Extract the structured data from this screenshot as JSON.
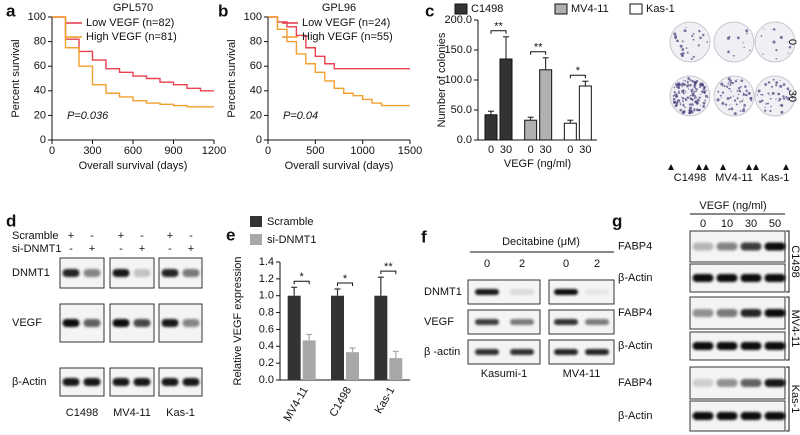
{
  "panel_labels": [
    "a",
    "b",
    "c",
    "d",
    "e",
    "f",
    "g"
  ],
  "chart_data": [
    {
      "type": "line",
      "step": true,
      "title": "GPL570",
      "x_label": "Overall survival (days)",
      "y_label": "Percent survival",
      "annotation": "P=0.036",
      "x": [
        0,
        100,
        200,
        300,
        400,
        500,
        600,
        700,
        800,
        900,
        1000,
        1100,
        1200
      ],
      "xlim": [
        0,
        1200
      ],
      "xticks": [
        0,
        300,
        600,
        900,
        1200
      ],
      "ylim": [
        0,
        100
      ],
      "yticks": [
        0,
        20,
        40,
        60,
        80,
        100
      ],
      "series": [
        {
          "name": "Low VEGF (n=82)",
          "color": "#e8414f",
          "values": [
            100,
            82,
            72,
            65,
            58,
            55,
            52,
            50,
            47,
            45,
            42,
            40,
            40
          ]
        },
        {
          "name": "High VEGF (n=81)",
          "color": "#f0a030",
          "values": [
            100,
            75,
            60,
            45,
            38,
            35,
            32,
            30,
            29,
            28,
            27,
            27,
            27
          ]
        }
      ]
    },
    {
      "type": "line",
      "step": true,
      "title": "GPL96",
      "x_label": "Overall survival (days)",
      "y_label": "Percent survival",
      "annotation": "P=0.04",
      "x": [
        0,
        100,
        200,
        300,
        400,
        500,
        600,
        700,
        800,
        900,
        1000,
        1100,
        1200,
        1300,
        1400,
        1500
      ],
      "xlim": [
        0,
        1500
      ],
      "xticks": [
        0,
        500,
        1000,
        1500
      ],
      "ylim": [
        0,
        100
      ],
      "yticks": [
        0,
        20,
        40,
        60,
        80,
        100
      ],
      "series": [
        {
          "name": "Low VEGF (n=24)",
          "color": "#e8414f",
          "values": [
            100,
            96,
            92,
            85,
            75,
            68,
            62,
            58,
            58,
            58,
            58,
            58,
            58,
            58,
            58,
            58
          ]
        },
        {
          "name": "High VEGF (n=55)",
          "color": "#f0a030",
          "values": [
            100,
            90,
            80,
            70,
            62,
            55,
            48,
            42,
            38,
            36,
            33,
            30,
            28,
            28,
            28,
            28
          ]
        }
      ]
    },
    {
      "type": "bar",
      "x_label": "VEGF (ng/ml)",
      "y_label": "Number of colonies",
      "categories": [
        "0",
        "30"
      ],
      "ylim": [
        0,
        200
      ],
      "yticks": [
        {
          "value": 0,
          "label": "0.0"
        },
        {
          "value": 50,
          "label": "50.0"
        },
        {
          "value": 100,
          "label": "100.0"
        },
        {
          "value": 150,
          "label": "150.0"
        },
        {
          "value": 200,
          "label": "200.0"
        }
      ],
      "series": [
        {
          "name": "C1498",
          "color": "#333333",
          "values": [
            42,
            135
          ],
          "errors": [
            6,
            37
          ]
        },
        {
          "name": "MV4-11",
          "color": "#b0b0b0",
          "values": [
            33,
            117
          ],
          "errors": [
            5,
            20
          ]
        },
        {
          "name": "Kas-1",
          "color": "#ffffff",
          "values": [
            28,
            90
          ],
          "errors": [
            5,
            8
          ]
        }
      ],
      "annotations": [
        "**",
        "**",
        "*"
      ]
    },
    {
      "type": "bar",
      "y_label": "Relative VEGF expression",
      "categories": [
        "MV4-11",
        "C1498",
        "Kas-1"
      ],
      "ylim": [
        0,
        1.4
      ],
      "yticks": [
        {
          "value": 0,
          "label": "0.0"
        },
        {
          "value": 0.2,
          "label": "0.2"
        },
        {
          "value": 0.4,
          "label": "0.4"
        },
        {
          "value": 0.6,
          "label": "0.6"
        },
        {
          "value": 0.8,
          "label": "0.8"
        },
        {
          "value": 1,
          "label": "1.0"
        },
        {
          "value": 1.2,
          "label": "1.2"
        },
        {
          "value": 1.4,
          "label": "1.4"
        }
      ],
      "series": [
        {
          "name": "Scramble",
          "color": "#333333",
          "values": [
            1.0,
            1.0,
            1.0
          ],
          "errors": [
            0.1,
            0.08,
            0.22
          ]
        },
        {
          "name": "si-DNMT1",
          "color": "#a8a8a8",
          "values": [
            0.47,
            0.33,
            0.26
          ],
          "errors": [
            0.07,
            0.05,
            0.08
          ]
        }
      ],
      "annotations": [
        "*",
        "*",
        "**"
      ]
    }
  ],
  "colony_image": {
    "row_labels": [
      "0",
      "30"
    ],
    "column_labels": [
      "C1498",
      "MV4-11",
      "Kas-1"
    ]
  },
  "blot_d": {
    "treatment_rows": [
      "Scramble",
      "si-DNMT1"
    ],
    "signs": [
      [
        "+",
        "-",
        "+",
        "-",
        "+",
        "-"
      ],
      [
        "-",
        "+",
        "-",
        "+",
        "-",
        "+"
      ]
    ],
    "proteins": [
      "DNMT1",
      "VEGF",
      "β-Actin"
    ],
    "cell_lines": [
      "C1498",
      "MV4-11",
      "Kas-1"
    ]
  },
  "blot_f": {
    "treatment": "Decitabine (μM)",
    "doses": [
      "0",
      "2",
      "0",
      "2"
    ],
    "proteins": [
      "DNMT1",
      "VEGF",
      "β -actin"
    ],
    "cell_lines": [
      "Kasumi-1",
      "MV4-11"
    ]
  },
  "blot_g": {
    "treatment": "VEGF (ng/ml)",
    "doses": [
      "0",
      "10",
      "30",
      "50"
    ],
    "proteins": [
      "FABP4",
      "β-Actin",
      "FABP4",
      "β-Actin",
      "FABP4",
      "β-Actin"
    ],
    "cell_lines": [
      "C1498",
      "MV4-11",
      "Kas-1"
    ]
  }
}
